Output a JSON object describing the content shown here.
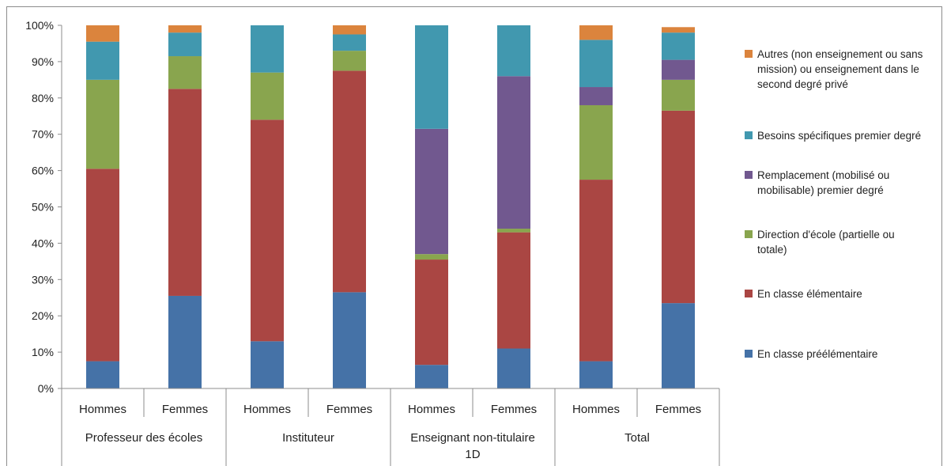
{
  "chart_data": {
    "type": "bar",
    "stacked": true,
    "percent_stacked": true,
    "groups": [
      "Professeur des écoles",
      "Instituteur",
      "Enseignant non-titulaire 1D",
      "Total"
    ],
    "categories": [
      "Hommes",
      "Femmes",
      "Hommes",
      "Femmes",
      "Hommes",
      "Femmes",
      "Hommes",
      "Femmes"
    ],
    "y_ticks": [
      "0%",
      "10%",
      "20%",
      "30%",
      "40%",
      "50%",
      "60%",
      "70%",
      "80%",
      "90%",
      "100%"
    ],
    "ylim": [
      0,
      100
    ],
    "grid": false,
    "legend_position": "right",
    "series": [
      {
        "name": "En classe préélémentaire",
        "color": "#4572A7",
        "values": [
          7.5,
          25.5,
          13,
          26.5,
          6.5,
          11,
          7.5,
          23.5
        ]
      },
      {
        "name": "En classe élémentaire",
        "color": "#AA4643",
        "values": [
          53,
          57,
          61,
          61,
          29,
          32,
          50,
          53
        ]
      },
      {
        "name": "Direction d'école (partielle ou totale)",
        "color": "#89A54E",
        "values": [
          24.5,
          9,
          13,
          5.5,
          1.5,
          1,
          20.5,
          8.5
        ]
      },
      {
        "name": "Remplacement (mobilisé ou mobilisable) premier degré",
        "color": "#71588F",
        "values": [
          0,
          0,
          0,
          0,
          34.5,
          42,
          5,
          5.5
        ]
      },
      {
        "name": "Besoins spécifiques premier degré",
        "color": "#4198AF",
        "values": [
          10.5,
          6.5,
          13,
          4.5,
          28.5,
          14,
          13,
          7.5
        ]
      },
      {
        "name": "Autres (non enseignement ou sans mission) ou enseignement dans le second degré privé",
        "color": "#DB843D",
        "values": [
          4.5,
          2,
          0,
          2.5,
          0,
          0,
          4,
          1.5
        ]
      }
    ]
  }
}
